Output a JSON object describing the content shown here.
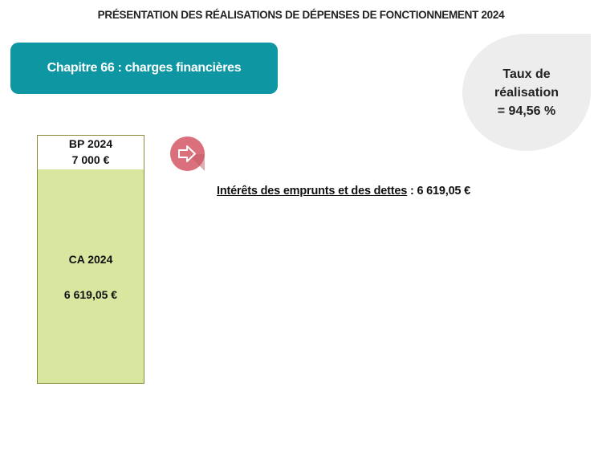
{
  "header": {
    "title": "PRÉSENTATION DES RÉALISATIONS DE DÉPENSES DE FONCTIONNEMENT 2024"
  },
  "chapter": {
    "label": "Chapitre 66 : charges financières"
  },
  "rate": {
    "line1": "Taux de",
    "line2": "réalisation",
    "line3": "= 94,56 %"
  },
  "budget": {
    "bp_label": "BP 2024",
    "bp_value": "7 000 €",
    "ca_label": "CA 2024",
    "ca_value": "6 619,05 €",
    "fill_percent": 94.56
  },
  "detail": {
    "label": "Intérêts des emprunts et des dettes",
    "value": " : 6 619,05 €"
  },
  "colors": {
    "chapter": "#0e97a3",
    "ca_fill": "#d8e6a0",
    "arrow": "#d9707c",
    "rate_bg": "#ededed"
  }
}
